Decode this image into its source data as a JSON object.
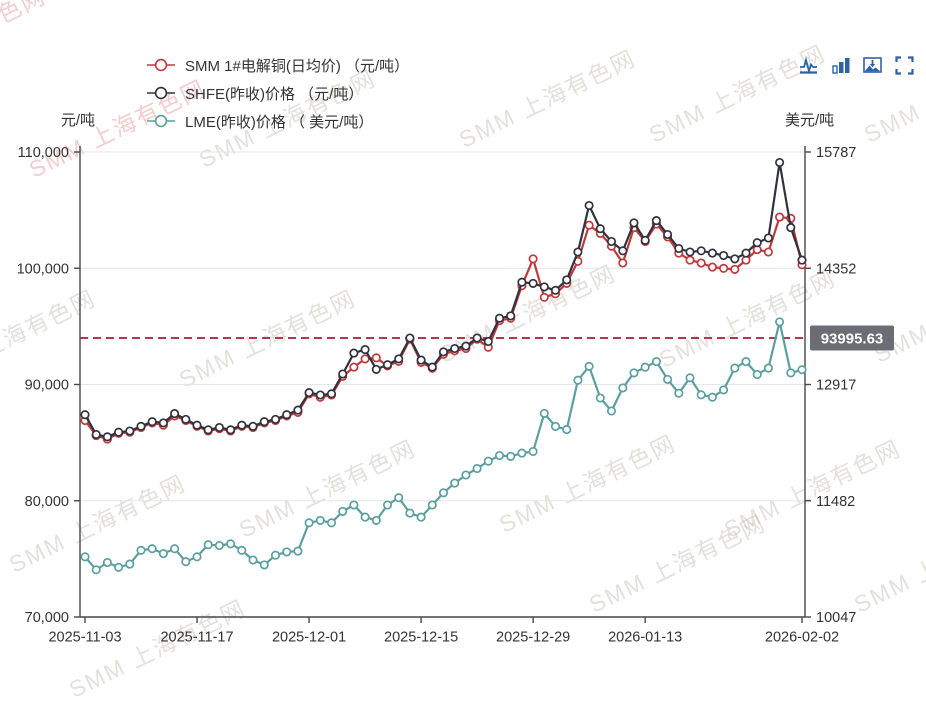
{
  "watermark": {
    "text": "SMM 上海有色网",
    "text_short": "有色网"
  },
  "toolbox": {
    "icons": [
      {
        "name": "line-chart-icon"
      },
      {
        "name": "bar-chart-icon"
      },
      {
        "name": "save-image-icon"
      },
      {
        "name": "fullscreen-icon"
      }
    ],
    "color": "#2d62a7"
  },
  "chart_data": {
    "type": "line",
    "legend": [
      {
        "label": "SMM 1#电解铜(日均价) （元/吨）",
        "color": "#c0393b"
      },
      {
        "label": "SHFE(昨收)价格 （元/吨）",
        "color": "#32323e"
      },
      {
        "label": "LME(昨收)价格 （ 美元/吨）",
        "color": "#5b9f9f"
      }
    ],
    "left_axis": {
      "name": "元/吨",
      "min": 70000,
      "max": 110000,
      "tick_labels": [
        "110,000",
        "100,000",
        "90,000",
        "80,000",
        "70,000"
      ]
    },
    "right_axis": {
      "name": "美元/吨",
      "min": 10047,
      "max": 15787,
      "tick_labels": [
        "15787",
        "14352",
        "12917",
        "11482",
        "10047"
      ]
    },
    "x": [
      "2025-11-03",
      "2025-11-04",
      "2025-11-05",
      "2025-11-06",
      "2025-11-07",
      "2025-11-10",
      "2025-11-11",
      "2025-11-12",
      "2025-11-13",
      "2025-11-14",
      "2025-11-17",
      "2025-11-18",
      "2025-11-19",
      "2025-11-20",
      "2025-11-21",
      "2025-11-24",
      "2025-11-25",
      "2025-11-26",
      "2025-11-27",
      "2025-11-28",
      "2025-12-01",
      "2025-12-02",
      "2025-12-03",
      "2025-12-04",
      "2025-12-05",
      "2025-12-08",
      "2025-12-09",
      "2025-12-10",
      "2025-12-11",
      "2025-12-12",
      "2025-12-15",
      "2025-12-16",
      "2025-12-17",
      "2025-12-18",
      "2025-12-19",
      "2025-12-22",
      "2025-12-23",
      "2025-12-24",
      "2025-12-25",
      "2025-12-26",
      "2025-12-29",
      "2025-12-30",
      "2025-12-31",
      "2026-01-02",
      "2026-01-05",
      "2026-01-06",
      "2026-01-07",
      "2026-01-08",
      "2026-01-09",
      "2026-01-12",
      "2026-01-13",
      "2026-01-14",
      "2026-01-15",
      "2026-01-16",
      "2026-01-19",
      "2026-01-20",
      "2026-01-21",
      "2026-01-22",
      "2026-01-23",
      "2026-01-26",
      "2026-01-27",
      "2026-01-28",
      "2026-01-29",
      "2026-01-30",
      "2026-02-02"
    ],
    "x_tick_labels": [
      "2025-11-03",
      "2025-11-17",
      "2025-12-01",
      "2025-12-15",
      "2025-12-29",
      "2026-01-13",
      "2026-02-02"
    ],
    "x_tick_indices": [
      0,
      10,
      20,
      30,
      40,
      50,
      64
    ],
    "series": [
      {
        "name": "SMM 1#电解铜(日均价)",
        "unit": "元/吨",
        "axis": "left",
        "color": "#c0393b",
        "values": [
          86900,
          85600,
          85300,
          85800,
          85900,
          86300,
          86700,
          86500,
          87300,
          86900,
          86400,
          86000,
          86200,
          86000,
          86400,
          86300,
          86700,
          86900,
          87300,
          87600,
          89200,
          88900,
          89100,
          90700,
          91500,
          92200,
          92300,
          91600,
          92000,
          93900,
          91900,
          91400,
          92600,
          92900,
          93100,
          93900,
          93200,
          95500,
          95700,
          98500,
          100800,
          97500,
          97800,
          98700,
          100600,
          103700,
          103000,
          101900,
          100450,
          103500,
          102300,
          103800,
          102700,
          101300,
          100700,
          100450,
          100100,
          100000,
          99900,
          100700,
          101600,
          101400,
          104400,
          104300,
          100300
        ]
      },
      {
        "name": "SHFE(昨收)价格",
        "unit": "元/吨",
        "axis": "left",
        "color": "#32323e",
        "values": [
          87400,
          85700,
          85500,
          85900,
          86000,
          86400,
          86800,
          86700,
          87500,
          87000,
          86500,
          86100,
          86300,
          86100,
          86500,
          86400,
          86800,
          87000,
          87400,
          87800,
          89300,
          89100,
          89200,
          90900,
          92700,
          93000,
          91300,
          91700,
          92200,
          94000,
          92100,
          91500,
          92800,
          93100,
          93300,
          94000,
          93700,
          95700,
          95900,
          98800,
          98700,
          98400,
          98100,
          99000,
          101400,
          105400,
          103400,
          102300,
          101500,
          103900,
          102400,
          104100,
          102900,
          101700,
          101400,
          101500,
          101300,
          101100,
          100800,
          101300,
          102200,
          102600,
          109100,
          103500,
          100700
        ]
      },
      {
        "name": "LME(昨收)价格",
        "unit": "美元/吨",
        "axis": "right",
        "color": "#5b9f9f",
        "values": [
          10790,
          10630,
          10720,
          10660,
          10700,
          10870,
          10890,
          10830,
          10890,
          10730,
          10790,
          10940,
          10930,
          10950,
          10870,
          10750,
          10690,
          10810,
          10850,
          10860,
          11210,
          11240,
          11210,
          11350,
          11430,
          11280,
          11240,
          11430,
          11520,
          11330,
          11280,
          11430,
          11580,
          11700,
          11800,
          11880,
          11970,
          12040,
          12030,
          12070,
          12090,
          12560,
          12400,
          12360,
          12970,
          13140,
          12750,
          12590,
          12875,
          13060,
          13130,
          13200,
          12980,
          12810,
          13000,
          12790,
          12760,
          12850,
          13120,
          13200,
          13040,
          13120,
          13690,
          13060,
          13100
        ]
      }
    ],
    "markline": {
      "value": 93995.63,
      "label": "93995.63",
      "axis": "left",
      "line_color": "#b9344b",
      "label_bg": "#6a6d73",
      "label_text_color": "#ffffff"
    },
    "grid": true,
    "legend_position": "top-left"
  }
}
